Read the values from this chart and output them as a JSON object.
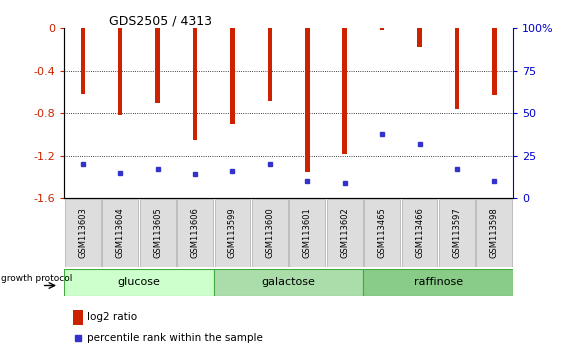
{
  "title": "GDS2505 / 4313",
  "samples": [
    "GSM113603",
    "GSM113604",
    "GSM113605",
    "GSM113606",
    "GSM113599",
    "GSM113600",
    "GSM113601",
    "GSM113602",
    "GSM113465",
    "GSM113466",
    "GSM113597",
    "GSM113598"
  ],
  "log2_ratio": [
    -0.62,
    -0.82,
    -0.7,
    -1.05,
    -0.9,
    -0.68,
    -1.35,
    -1.18,
    -0.02,
    -0.18,
    -0.76,
    -0.63
  ],
  "percentile_rank": [
    20,
    15,
    17,
    14,
    16,
    20,
    10,
    9,
    38,
    32,
    17,
    10
  ],
  "groups": [
    {
      "label": "glucose",
      "start": 0,
      "end": 4,
      "color": "#ccffcc"
    },
    {
      "label": "galactose",
      "start": 4,
      "end": 8,
      "color": "#aaddaa"
    },
    {
      "label": "raffinose",
      "start": 8,
      "end": 12,
      "color": "#88cc88"
    }
  ],
  "ylim_left": [
    -1.6,
    0.0
  ],
  "ylim_right": [
    0,
    100
  ],
  "left_ticks": [
    0,
    -0.4,
    -0.8,
    -1.2,
    -1.6
  ],
  "right_ticks": [
    0,
    25,
    50,
    75,
    100
  ],
  "bar_color": "#cc2200",
  "dot_color": "#3333cc",
  "background_color": "#ffffff",
  "tick_label_color_left": "#cc2200",
  "tick_label_color_right": "#0000cc",
  "legend_log2": "log2 ratio",
  "legend_pct": "percentile rank within the sample",
  "growth_protocol_label": "growth protocol",
  "bar_width": 0.12
}
